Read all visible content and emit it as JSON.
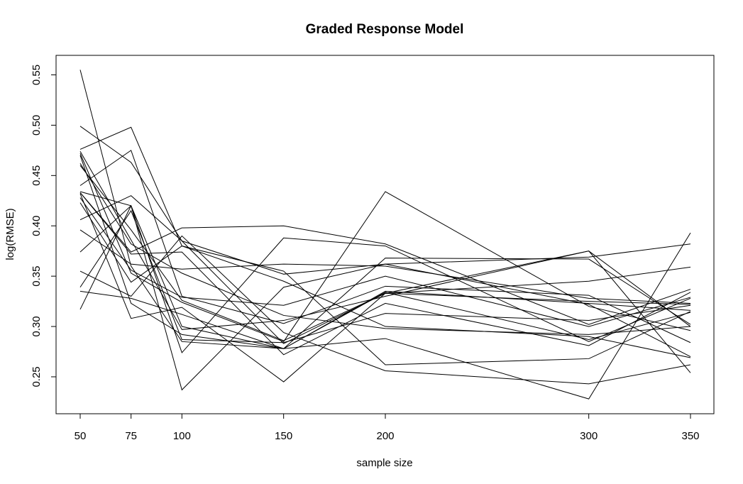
{
  "chart_data": {
    "type": "line",
    "title": "Graded Response Model",
    "xlabel": "sample size",
    "ylabel": "log(RMSE)",
    "x": [
      50,
      75,
      100,
      150,
      200,
      300,
      350
    ],
    "x_tick_labels": [
      "50",
      "75",
      "100",
      "150",
      "200",
      "300",
      "350"
    ],
    "y_ticks": [
      0.25,
      0.3,
      0.35,
      0.4,
      0.45,
      0.5,
      0.55
    ],
    "y_tick_labels": [
      "0.25",
      "0.30",
      "0.35",
      "0.40",
      "0.45",
      "0.50",
      "0.55"
    ],
    "xlim": [
      50,
      350
    ],
    "ylim": [
      0.226,
      0.556
    ],
    "grid": false,
    "line_color": "#000000",
    "series": [
      {
        "values": [
          0.555,
          0.36,
          0.285,
          0.278,
          0.335,
          0.323,
          0.316
        ]
      },
      {
        "values": [
          0.499,
          0.463,
          0.385,
          0.283,
          0.333,
          0.375,
          0.3
        ]
      },
      {
        "values": [
          0.476,
          0.498,
          0.38,
          0.345,
          0.3,
          0.29,
          0.269
        ]
      },
      {
        "values": [
          0.474,
          0.386,
          0.297,
          0.306,
          0.33,
          0.375,
          0.254
        ]
      },
      {
        "values": [
          0.472,
          0.353,
          0.324,
          0.285,
          0.434,
          0.32,
          0.296
        ]
      },
      {
        "values": [
          0.47,
          0.323,
          0.292,
          0.278,
          0.288,
          0.228,
          0.393
        ]
      },
      {
        "values": [
          0.462,
          0.382,
          0.353,
          0.311,
          0.298,
          0.292,
          0.3
        ]
      },
      {
        "values": [
          0.46,
          0.396,
          0.326,
          0.286,
          0.333,
          0.345,
          0.359
        ]
      },
      {
        "values": [
          0.44,
          0.475,
          0.33,
          0.303,
          0.34,
          0.331,
          0.284
        ]
      },
      {
        "values": [
          0.434,
          0.42,
          0.237,
          0.339,
          0.362,
          0.369,
          0.382
        ]
      },
      {
        "values": [
          0.433,
          0.374,
          0.398,
          0.4,
          0.382,
          0.302,
          0.337
        ]
      },
      {
        "values": [
          0.432,
          0.308,
          0.319,
          0.245,
          0.333,
          0.325,
          0.322
        ]
      },
      {
        "values": [
          0.428,
          0.356,
          0.329,
          0.321,
          0.35,
          0.3,
          0.329
        ]
      },
      {
        "values": [
          0.423,
          0.344,
          0.38,
          0.355,
          0.262,
          0.268,
          0.315
        ]
      },
      {
        "values": [
          0.406,
          0.43,
          0.385,
          0.352,
          0.362,
          0.322,
          0.27
        ]
      },
      {
        "values": [
          0.396,
          0.362,
          0.357,
          0.362,
          0.36,
          0.328,
          0.323
        ]
      },
      {
        "values": [
          0.374,
          0.42,
          0.274,
          0.388,
          0.38,
          0.285,
          0.328
        ]
      },
      {
        "values": [
          0.355,
          0.33,
          0.39,
          0.294,
          0.256,
          0.243,
          0.262
        ]
      },
      {
        "values": [
          0.339,
          0.415,
          0.287,
          0.284,
          0.313,
          0.306,
          0.321
        ]
      },
      {
        "values": [
          0.335,
          0.328,
          0.312,
          0.278,
          0.334,
          0.287,
          0.314
        ]
      },
      {
        "values": [
          0.317,
          0.42,
          0.3,
          0.278,
          0.368,
          0.367,
          0.302
        ]
      },
      {
        "values": [
          0.433,
          0.372,
          0.374,
          0.272,
          0.323,
          0.281,
          0.334
        ]
      }
    ]
  }
}
